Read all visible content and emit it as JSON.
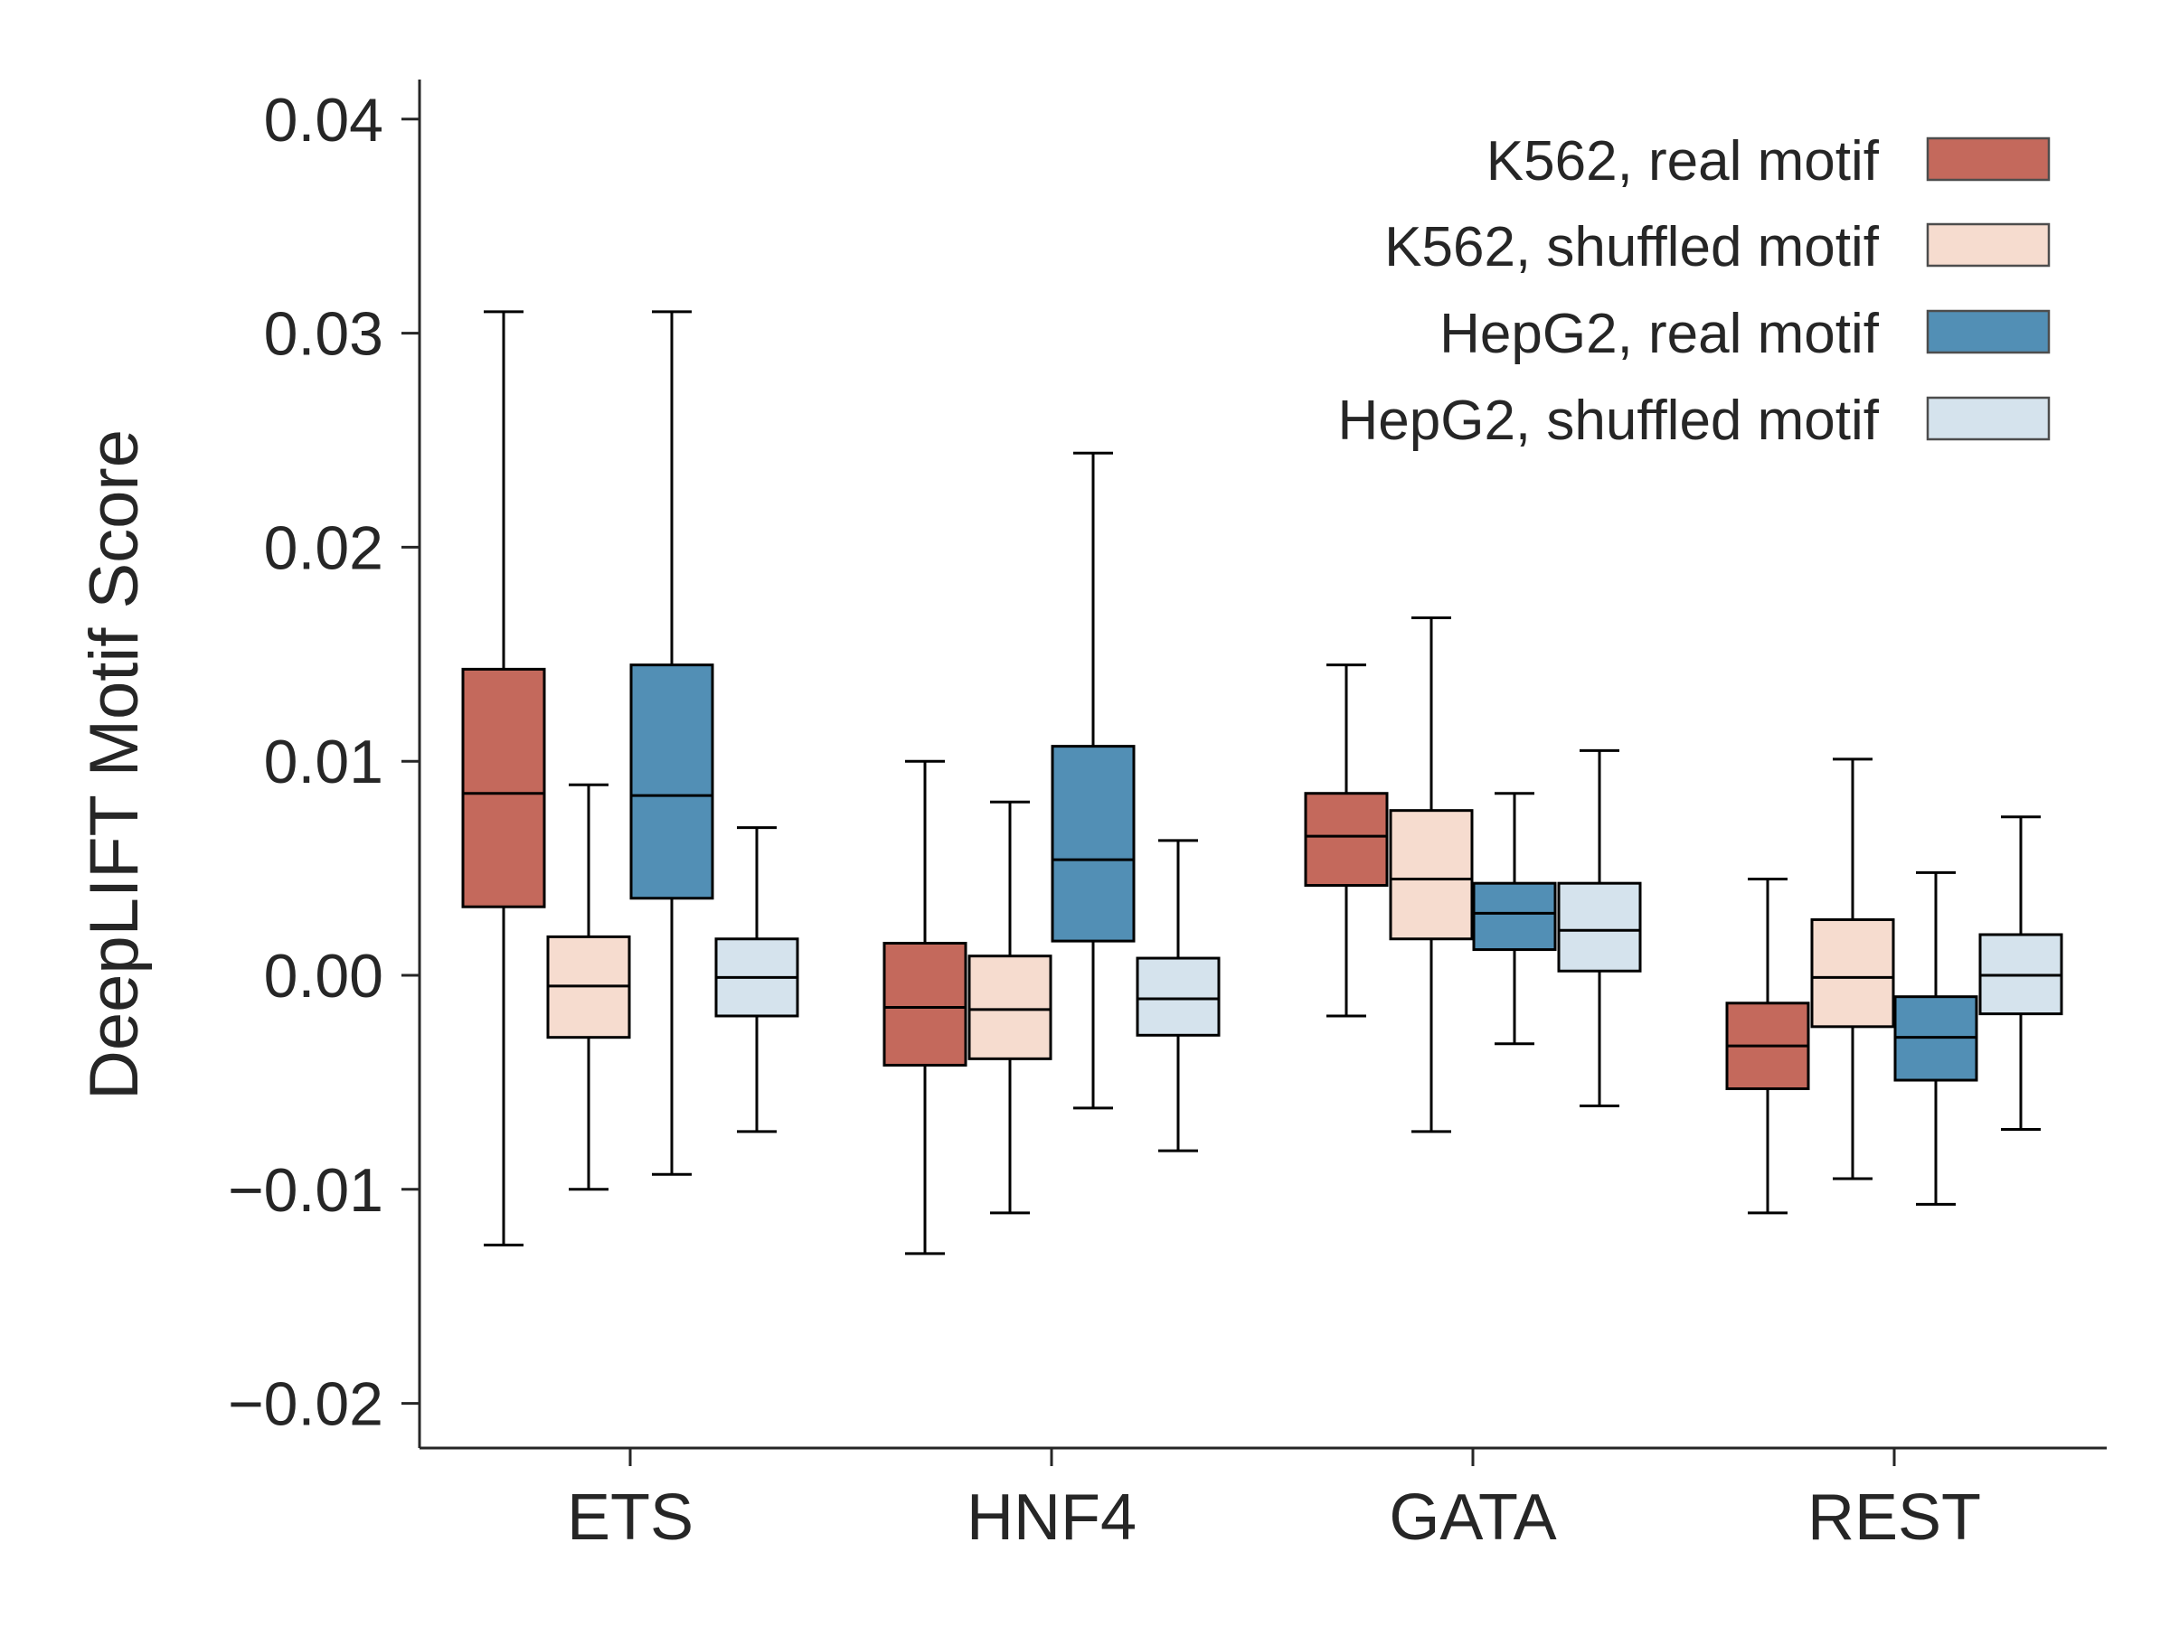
{
  "chart_data": {
    "type": "boxplot",
    "ylabel": "DeepLIFT Motif Score",
    "xlabel": "",
    "ylim": [
      -0.022,
      0.042
    ],
    "yticks": [
      -0.02,
      -0.01,
      0.0,
      0.01,
      0.02,
      0.03,
      0.04
    ],
    "ytick_labels": [
      "−0.02",
      "−0.01",
      "0.00",
      "0.01",
      "0.02",
      "0.03",
      "0.04"
    ],
    "categories": [
      "ETS",
      "HNF4",
      "GATA",
      "REST"
    ],
    "legend_position": "top-right",
    "series": [
      {
        "name": "K562, real motif",
        "color": "#c4695c",
        "boxes": [
          {
            "whislo": -0.0126,
            "q1": 0.0032,
            "med": 0.0085,
            "q3": 0.0143,
            "whishi": 0.031
          },
          {
            "whislo": -0.013,
            "q1": -0.0042,
            "med": -0.0015,
            "q3": 0.0015,
            "whishi": 0.01
          },
          {
            "whislo": -0.0019,
            "q1": 0.0042,
            "med": 0.0065,
            "q3": 0.0085,
            "whishi": 0.0145
          },
          {
            "whislo": -0.0111,
            "q1": -0.0053,
            "med": -0.0033,
            "q3": -0.0013,
            "whishi": 0.0045
          }
        ]
      },
      {
        "name": "K562, shuffled motif",
        "color": "#f6dccf",
        "boxes": [
          {
            "whislo": -0.01,
            "q1": -0.0029,
            "med": -0.0005,
            "q3": 0.0018,
            "whishi": 0.0089
          },
          {
            "whislo": -0.0111,
            "q1": -0.0039,
            "med": -0.0016,
            "q3": 0.0009,
            "whishi": 0.0081
          },
          {
            "whislo": -0.0073,
            "q1": 0.0017,
            "med": 0.0045,
            "q3": 0.0077,
            "whishi": 0.0167
          },
          {
            "whislo": -0.0095,
            "q1": -0.0024,
            "med": -0.0001,
            "q3": 0.0026,
            "whishi": 0.0101
          }
        ]
      },
      {
        "name": "HepG2, real motif",
        "color": "#528fb5",
        "boxes": [
          {
            "whislo": -0.0093,
            "q1": 0.0036,
            "med": 0.0084,
            "q3": 0.0145,
            "whishi": 0.031
          },
          {
            "whislo": -0.0062,
            "q1": 0.0016,
            "med": 0.0054,
            "q3": 0.0107,
            "whishi": 0.0244
          },
          {
            "whislo": -0.0032,
            "q1": 0.0012,
            "med": 0.0029,
            "q3": 0.0043,
            "whishi": 0.0085
          },
          {
            "whislo": -0.0107,
            "q1": -0.0049,
            "med": -0.0029,
            "q3": -0.001,
            "whishi": 0.0048
          }
        ]
      },
      {
        "name": "HepG2, shuffled motif",
        "color": "#d5e3ed",
        "boxes": [
          {
            "whislo": -0.0073,
            "q1": -0.0019,
            "med": -0.0001,
            "q3": 0.0017,
            "whishi": 0.0069
          },
          {
            "whislo": -0.0082,
            "q1": -0.0028,
            "med": -0.0011,
            "q3": 0.0008,
            "whishi": 0.0063
          },
          {
            "whislo": -0.0061,
            "q1": 0.0002,
            "med": 0.0021,
            "q3": 0.0043,
            "whishi": 0.0105
          },
          {
            "whislo": -0.0072,
            "q1": -0.0018,
            "med": 0.0,
            "q3": 0.0019,
            "whishi": 0.0074
          }
        ]
      }
    ]
  }
}
